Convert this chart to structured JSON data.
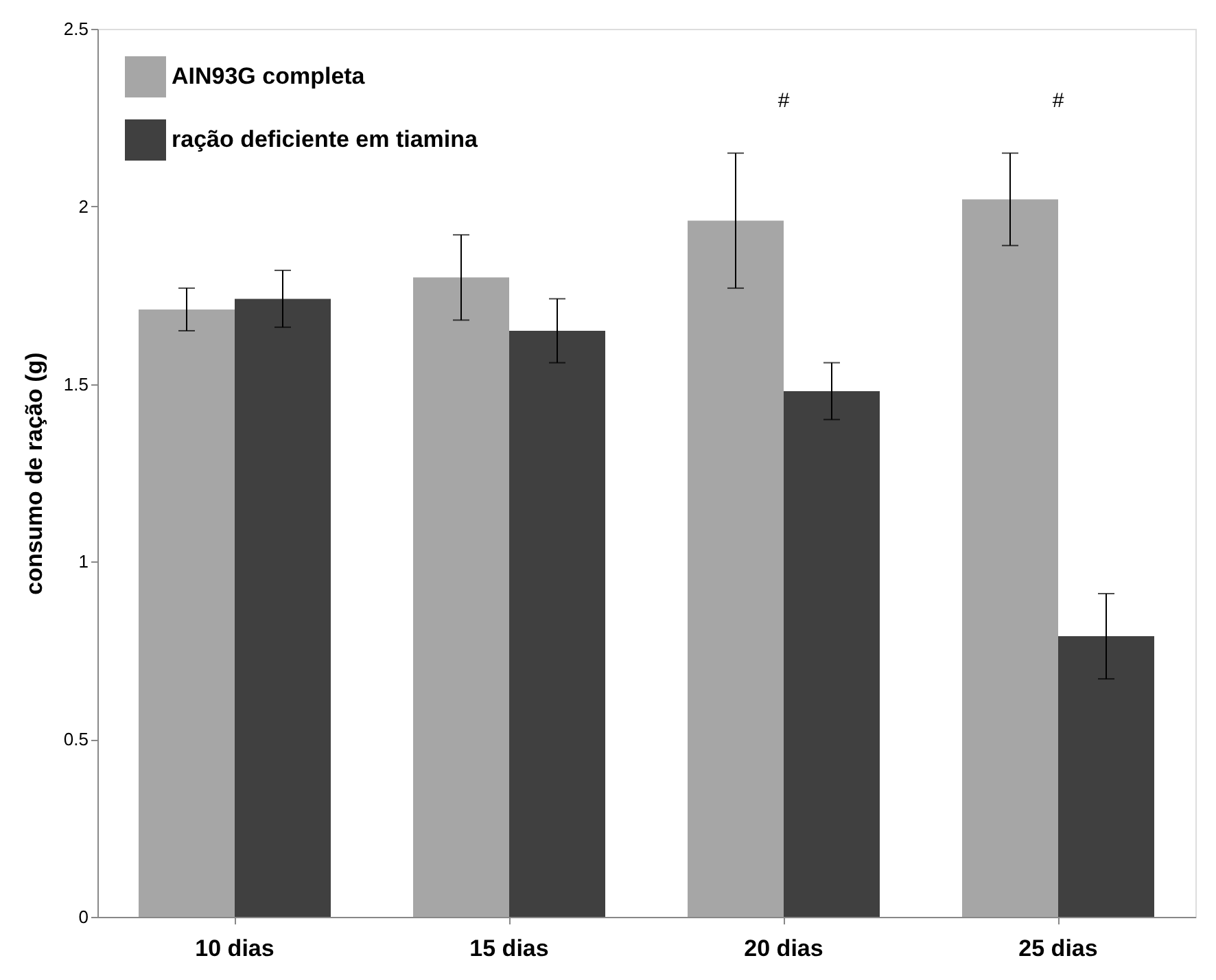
{
  "chart_data": {
    "type": "bar",
    "ylabel": "consumo de ração (g)",
    "categories": [
      "10 dias",
      "15 dias",
      "20 dias",
      "25 dias"
    ],
    "series": [
      {
        "name": "AIN93G completa",
        "color": "#a6a6a6",
        "values": [
          1.71,
          1.8,
          1.96,
          2.02
        ],
        "errors": [
          0.06,
          0.12,
          0.19,
          0.13
        ]
      },
      {
        "name": "ração deficiente em tiamina",
        "color": "#404040",
        "values": [
          1.74,
          1.65,
          1.48,
          0.79
        ],
        "errors": [
          0.08,
          0.09,
          0.08,
          0.12
        ]
      }
    ],
    "ylim": [
      0,
      2.5
    ],
    "yticks": [
      0,
      0.5,
      1,
      1.5,
      2,
      2.5
    ],
    "grid": false,
    "legend": "top left",
    "annotations": [
      "#",
      "#"
    ]
  }
}
